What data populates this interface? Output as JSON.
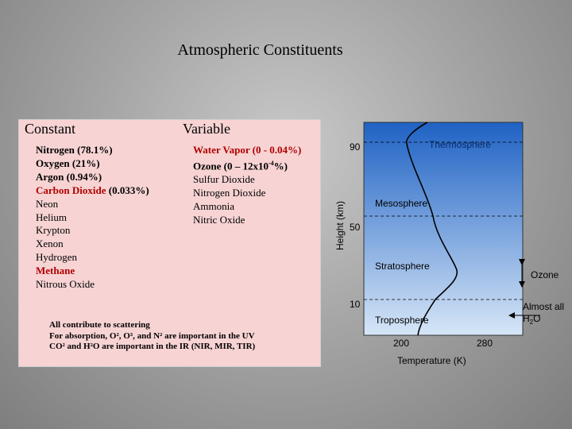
{
  "title": "Atmospheric Constituents",
  "constant": {
    "heading": "Constant",
    "items": [
      {
        "text": "Nitrogen  (78.1%)",
        "style": "black-bold"
      },
      {
        "text": "Oxygen  (21%)",
        "style": "black-bold"
      },
      {
        "text": "Argon  (0.94%)",
        "style": "black-bold"
      },
      {
        "text": "Carbon Dioxide",
        "style": "red-bold",
        "suffix": "  (0.033%)"
      },
      {
        "text": "Neon",
        "style": "black"
      },
      {
        "text": "Helium",
        "style": "black"
      },
      {
        "text": "Krypton",
        "style": "black"
      },
      {
        "text": "Xenon",
        "style": "black"
      },
      {
        "text": "Hydrogen",
        "style": "black"
      },
      {
        "text": "Methane",
        "style": "red-bold"
      },
      {
        "text": "Nitrous Oxide",
        "style": "black"
      }
    ]
  },
  "variable": {
    "heading": "Variable",
    "items": [
      {
        "text": "Water Vapor  (0 - 0.04%)",
        "style": "red-bold"
      },
      {
        "text": "Ozone  (0 – 12x10",
        "style": "black-bold",
        "sup": "-4",
        "suffix": "%)"
      },
      {
        "text": "Sulfur Dioxide",
        "style": "black"
      },
      {
        "text": "Nitrogen Dioxide",
        "style": "black"
      },
      {
        "text": "Ammonia",
        "style": "black"
      },
      {
        "text": "Nitric Oxide",
        "style": "black"
      }
    ]
  },
  "note": {
    "line1": "All contribute to scattering",
    "line2": "For absorption, O², O³, and N² are important in the UV",
    "line3": "CO² and H²O are important in the IR (NIR, MIR, TIR)"
  },
  "figure": {
    "ylabel": "Height (km)",
    "xlabel": "Temperature (K)",
    "yticks": [
      "90",
      "50",
      "10"
    ],
    "xticks": [
      "200",
      "280"
    ],
    "layers": [
      "Thermosphere",
      "Mesosphere",
      "Stratosphere",
      "Troposphere"
    ],
    "ozone_label": "Ozone",
    "h2o_label_line1": "Almost all",
    "h2o_label_line2": "H",
    "h2o_sub": "2",
    "h2o_label_line2_end": "O",
    "colors": {
      "top": "#1f62c4",
      "bottom": "#d6e6f7"
    }
  }
}
